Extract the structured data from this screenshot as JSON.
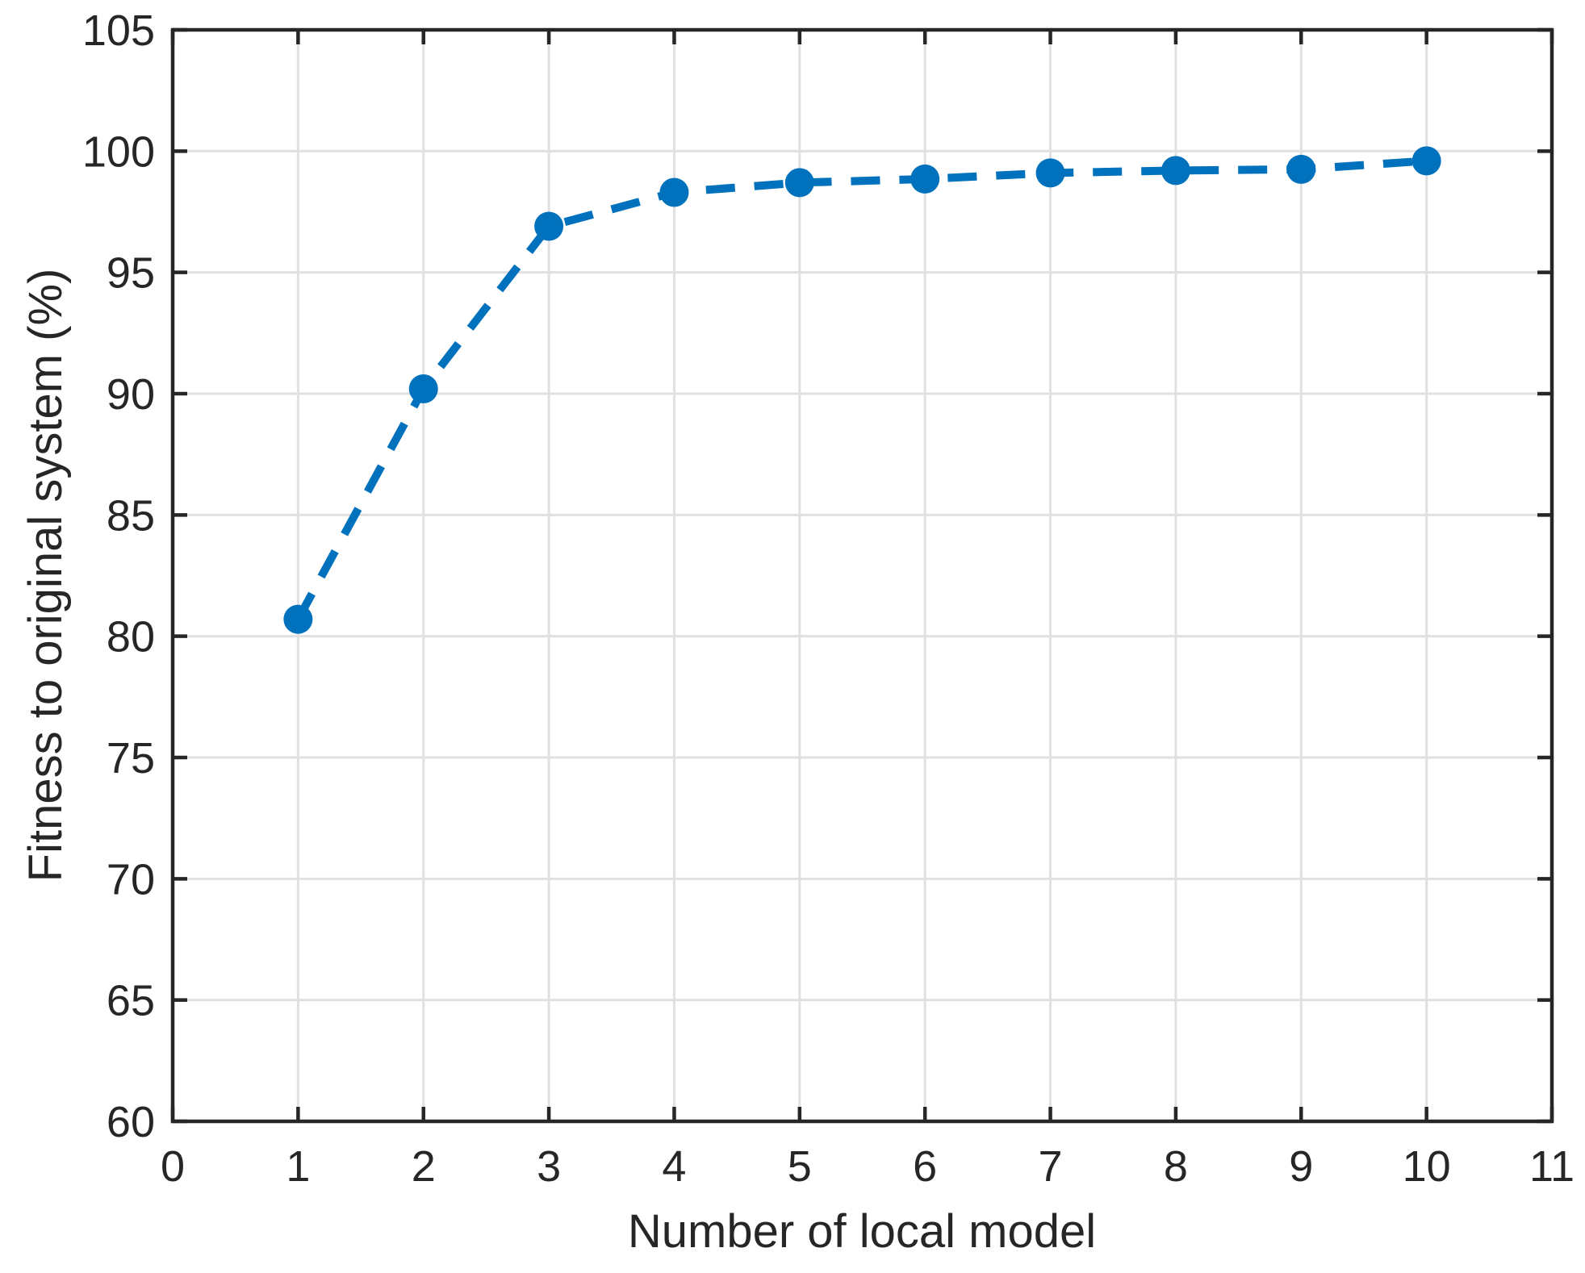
{
  "figure": {
    "background": "#ffffff",
    "axes_color": "#262626",
    "grid_color": "#e0e0e0",
    "tick_label_color": "#262626",
    "axis_label_color": "#262626"
  },
  "chart_data": {
    "type": "line",
    "xlabel": "Number of local model",
    "ylabel": "Fitness to original system (%)",
    "x": [
      1,
      2,
      3,
      4,
      5,
      6,
      7,
      8,
      9,
      10
    ],
    "y": [
      80.7,
      90.2,
      96.9,
      98.3,
      98.7,
      98.85,
      99.1,
      99.2,
      99.25,
      99.6
    ],
    "x_ticks": [
      0,
      1,
      2,
      3,
      4,
      5,
      6,
      7,
      8,
      9,
      10,
      11
    ],
    "y_ticks": [
      60,
      65,
      70,
      75,
      80,
      85,
      90,
      95,
      100,
      105
    ],
    "xlim": [
      0,
      11
    ],
    "ylim": [
      60,
      105
    ],
    "grid": true,
    "line_color": "#0072BD",
    "line_style": "dashed",
    "marker": "filled-circle",
    "legend": null
  }
}
